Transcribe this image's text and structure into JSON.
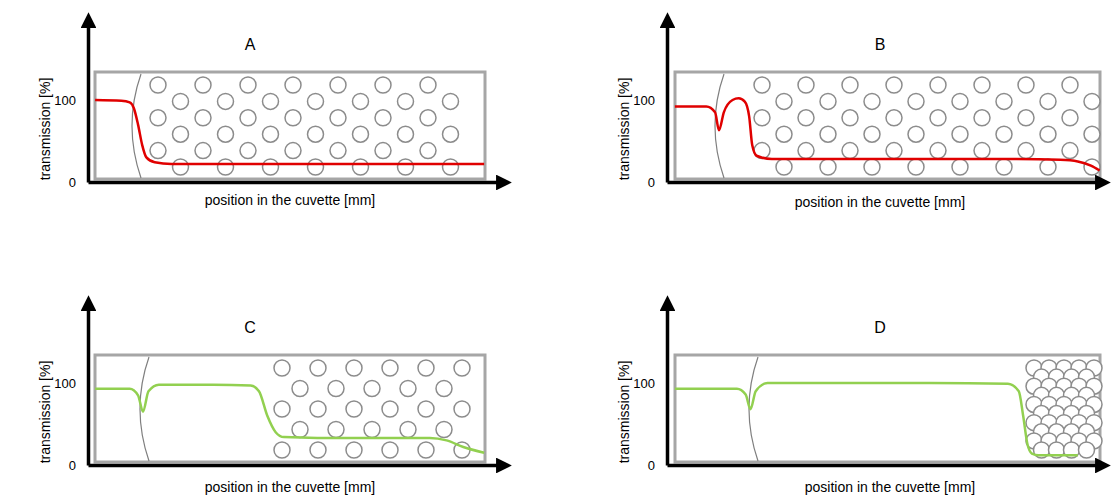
{
  "chart_data": [
    {
      "type": "line",
      "title": "A",
      "xlabel": "position in the cuvette [mm]",
      "ylabel": "transmission [%]",
      "xlim": [
        0,
        100
      ],
      "ylim": [
        0,
        200
      ],
      "xticks": [],
      "yticks": [
        0,
        100
      ],
      "tick_labels": "y",
      "x": [
        1.7,
        8,
        10,
        11,
        12,
        13,
        14,
        16,
        20,
        40,
        60,
        80,
        95
      ],
      "series": [
        {
          "color": "#e00000",
          "values": [
            100,
            99,
            97,
            90,
            70,
            45,
            30,
            24,
            22,
            22,
            22,
            22,
            22
          ]
        }
      ]
    },
    {
      "type": "line",
      "title": "B",
      "xlabel": "position in the cuvette [mm]",
      "ylabel": "transmission [%]",
      "xlim": [
        0,
        100
      ],
      "ylim": [
        0,
        200
      ],
      "xticks": [],
      "yticks": [
        0,
        100
      ],
      "tick_labels": "y",
      "x": [
        1.8,
        9,
        11,
        11.9,
        13,
        15,
        16.4,
        17.8,
        18.8,
        19.5,
        20.5,
        24,
        40,
        60,
        80,
        90,
        94,
        97,
        99
      ],
      "series": [
        {
          "color": "#e00000",
          "values": [
            92,
            92,
            85,
            63,
            85,
            100,
            102,
            98,
            80,
            45,
            32,
            28,
            28,
            28,
            28,
            27,
            25,
            20,
            14
          ]
        }
      ]
    },
    {
      "type": "line",
      "title": "C",
      "xlabel": "position in the cuvette [mm]",
      "ylabel": "transmission [%]",
      "xlim": [
        0,
        100
      ],
      "ylim": [
        0,
        200
      ],
      "xticks": [],
      "yticks": [
        0,
        100
      ],
      "tick_labels": "y",
      "x": [
        1.7,
        10,
        12,
        13.2,
        14.5,
        17,
        30,
        39,
        41,
        43,
        45,
        47,
        55,
        70,
        82,
        86,
        90,
        95
      ],
      "series": [
        {
          "color": "#92d050",
          "values": [
            93,
            93,
            85,
            65,
            90,
            98,
            98,
            97,
            90,
            60,
            40,
            34,
            33,
            33,
            33,
            30,
            22,
            15
          ]
        }
      ]
    },
    {
      "type": "line",
      "title": "D",
      "xlabel": "position in the cuvette [mm]",
      "ylabel": "transmission [%]",
      "xlim": [
        0,
        100
      ],
      "ylim": [
        0,
        200
      ],
      "xticks": [],
      "yticks": [
        0,
        100
      ],
      "tick_labels": "y",
      "x": [
        1.8,
        16,
        18,
        19.1,
        20.3,
        23,
        40,
        60,
        78,
        80.5,
        81.5,
        82.5,
        83.5,
        85,
        90,
        94
      ],
      "series": [
        {
          "color": "#92d050",
          "values": [
            93,
            93,
            86,
            68,
            90,
            100,
            100,
            100,
            99,
            90,
            60,
            25,
            14,
            12,
            12,
            12
          ]
        }
      ]
    }
  ]
}
